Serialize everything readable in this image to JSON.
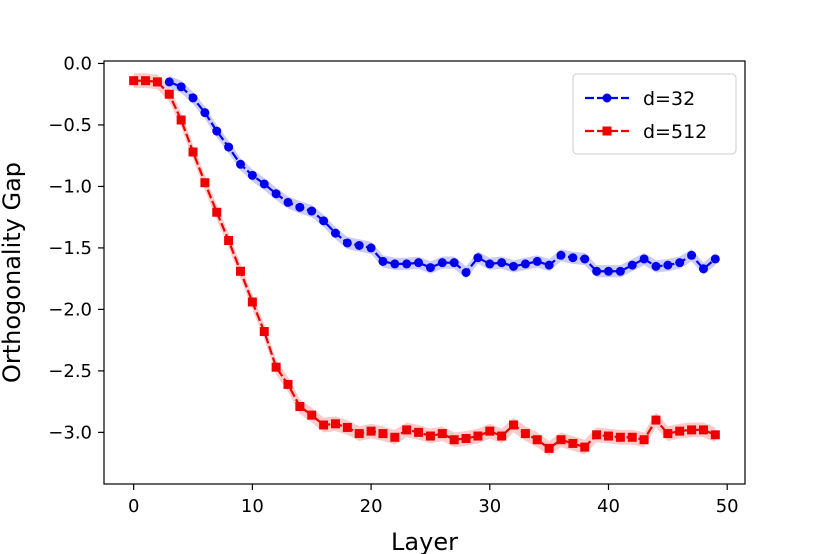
{
  "chart_data": {
    "type": "line",
    "title": "",
    "xlabel": "Layer",
    "ylabel": "Orthogonality Gap",
    "xlim": [
      -2.5,
      51.5
    ],
    "ylim": [
      -3.42,
      0.02
    ],
    "xticks": [
      0,
      10,
      20,
      30,
      40,
      50
    ],
    "yticks": [
      0.0,
      -0.5,
      -1.0,
      -1.5,
      -2.0,
      -2.5,
      -3.0
    ],
    "xtick_labels": [
      "0",
      "10",
      "20",
      "30",
      "40",
      "50"
    ],
    "ytick_labels": [
      "0.0",
      "−0.5",
      "−1.0",
      "−1.5",
      "−2.0",
      "−2.5",
      "−3.0"
    ],
    "grid": false,
    "legend_position": "top-right",
    "series": [
      {
        "name": "d=32",
        "color": "#0000ee",
        "marker": "circle",
        "band": 0.05,
        "x": [
          3,
          4,
          5,
          6,
          7,
          8,
          9,
          10,
          11,
          12,
          13,
          14,
          15,
          16,
          17,
          18,
          19,
          20,
          21,
          22,
          23,
          24,
          25,
          26,
          27,
          28,
          29,
          30,
          31,
          32,
          33,
          34,
          35,
          36,
          37,
          38,
          39,
          40,
          41,
          42,
          43,
          44,
          45,
          46,
          47,
          48,
          49
        ],
        "y": [
          -0.15,
          -0.19,
          -0.28,
          -0.4,
          -0.55,
          -0.68,
          -0.82,
          -0.91,
          -0.98,
          -1.06,
          -1.13,
          -1.17,
          -1.2,
          -1.28,
          -1.38,
          -1.46,
          -1.48,
          -1.5,
          -1.61,
          -1.63,
          -1.63,
          -1.62,
          -1.66,
          -1.62,
          -1.62,
          -1.7,
          -1.58,
          -1.63,
          -1.62,
          -1.65,
          -1.63,
          -1.61,
          -1.64,
          -1.56,
          -1.58,
          -1.59,
          -1.69,
          -1.69,
          -1.69,
          -1.64,
          -1.59,
          -1.65,
          -1.64,
          -1.62,
          -1.56,
          -1.67,
          -1.59
        ]
      },
      {
        "name": "d=512",
        "color": "#ee0000",
        "marker": "square",
        "band": 0.06,
        "x": [
          0,
          1,
          2,
          3,
          4,
          5,
          6,
          7,
          8,
          9,
          10,
          11,
          12,
          13,
          14,
          15,
          16,
          17,
          18,
          19,
          20,
          21,
          22,
          23,
          24,
          25,
          26,
          27,
          28,
          29,
          30,
          31,
          32,
          33,
          34,
          35,
          36,
          37,
          38,
          39,
          40,
          41,
          42,
          43,
          44,
          45,
          46,
          47,
          48,
          49
        ],
        "y": [
          -0.14,
          -0.14,
          -0.15,
          -0.25,
          -0.46,
          -0.72,
          -0.97,
          -1.21,
          -1.44,
          -1.69,
          -1.94,
          -2.18,
          -2.47,
          -2.61,
          -2.79,
          -2.86,
          -2.94,
          -2.93,
          -2.96,
          -3.01,
          -2.99,
          -3.01,
          -3.04,
          -2.98,
          -3.0,
          -3.03,
          -3.01,
          -3.06,
          -3.05,
          -3.03,
          -2.99,
          -3.03,
          -2.94,
          -3.01,
          -3.06,
          -3.13,
          -3.06,
          -3.09,
          -3.12,
          -3.02,
          -3.03,
          -3.04,
          -3.04,
          -3.06,
          -2.9,
          -3.01,
          -2.99,
          -2.98,
          -2.98,
          -3.02
        ]
      }
    ]
  }
}
